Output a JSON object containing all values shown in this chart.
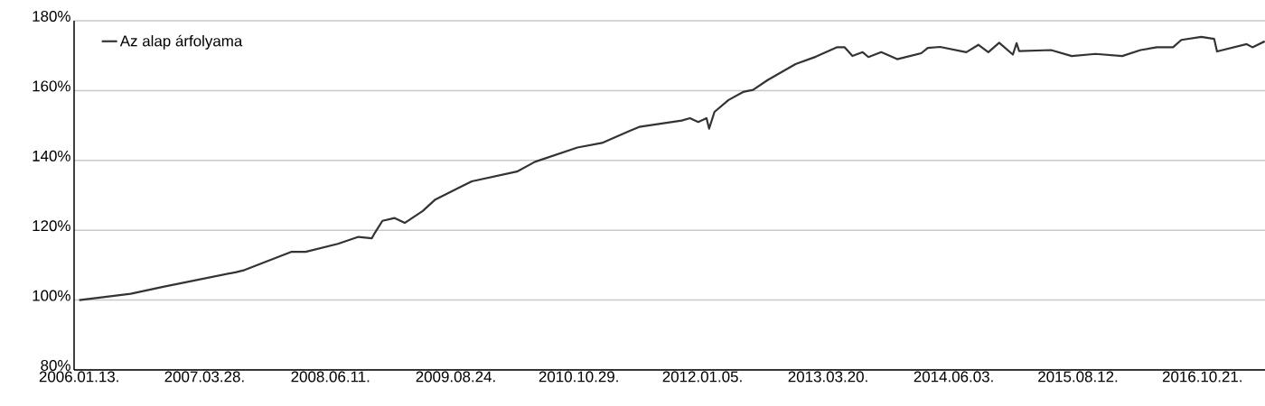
{
  "chart_data": {
    "type": "line",
    "x": [
      "2006-01-13",
      "2006-07-12",
      "2006-11-03",
      "2007-07-17",
      "2007-08-15",
      "2008-01-25",
      "2008-03-16",
      "2008-07-07",
      "2008-09-17",
      "2008-11-03",
      "2008-11-13",
      "2008-12-10",
      "2009-01-22",
      "2009-02-26",
      "2009-04-30",
      "2009-06-13",
      "2009-10-19",
      "2010-03-26",
      "2010-05-28",
      "2010-10-24",
      "2011-01-18",
      "2011-04-20",
      "2011-05-28",
      "2011-10-24",
      "2011-11-22",
      "2011-12-21",
      "2012-01-19",
      "2012-01-28",
      "2012-02-16",
      "2012-04-05",
      "2012-05-26",
      "2012-06-30",
      "2012-08-20",
      "2012-11-26",
      "2013-02-05",
      "2013-04-19",
      "2013-05-17",
      "2013-06-13",
      "2013-07-19",
      "2013-08-08",
      "2013-09-22",
      "2013-11-17",
      "2014-02-09",
      "2014-03-04",
      "2014-04-16",
      "2014-07-17",
      "2014-08-28",
      "2014-10-02",
      "2014-11-09",
      "2014-12-27",
      "2015-01-09",
      "2015-01-18",
      "2015-05-10",
      "2015-07-21",
      "2015-10-13",
      "2016-01-14",
      "2016-03-18",
      "2016-05-14",
      "2016-07-10",
      "2016-08-08",
      "2016-10-17",
      "2016-12-01",
      "2016-12-11",
      "2017-03-25",
      "2017-04-14",
      "2017-05-27"
    ],
    "series": [
      {
        "name": "Az alap árfolyama",
        "color": "#333333",
        "values": [
          100,
          101.8,
          103.8,
          108,
          108.6,
          113.8,
          113.8,
          116.1,
          118.1,
          117.7,
          119.2,
          122.7,
          123.5,
          122.1,
          125.5,
          128.8,
          134,
          136.8,
          139.6,
          143.7,
          145,
          148.3,
          149.6,
          151.4,
          152.1,
          151,
          152.1,
          149.1,
          153.9,
          157.3,
          159.6,
          160.2,
          163,
          167.6,
          169.7,
          172.4,
          172.4,
          169.9,
          171,
          169.6,
          171,
          169,
          170.7,
          172.2,
          172.5,
          171,
          173.1,
          171,
          173.7,
          170.3,
          173.6,
          171.3,
          171.6,
          169.9,
          170.5,
          169.9,
          171.6,
          172.4,
          172.4,
          174.5,
          175.4,
          174.8,
          171.2,
          173.3,
          172.4,
          174.1
        ]
      }
    ],
    "xlim": [
      "2005-12-26",
      "2017-05-28"
    ],
    "xticks": [
      {
        "value": "2006-01-13",
        "label": "2006.01.13."
      },
      {
        "value": "2007-03-28",
        "label": "2007.03.28."
      },
      {
        "value": "2008-06-11",
        "label": "2008.06.11."
      },
      {
        "value": "2009-08-24",
        "label": "2009.08.24."
      },
      {
        "value": "2010-10-29",
        "label": "2010.10.29."
      },
      {
        "value": "2012-01-05",
        "label": "2012.01.05."
      },
      {
        "value": "2013-03-20",
        "label": "2013.03.20."
      },
      {
        "value": "2014-06-03",
        "label": "2014.06.03."
      },
      {
        "value": "2015-08-12",
        "label": "2015.08.12."
      },
      {
        "value": "2016-10-21",
        "label": "2016.10.21."
      }
    ],
    "ylim": [
      80,
      180
    ],
    "yticks": [
      {
        "value": 80,
        "label": "80%"
      },
      {
        "value": 100,
        "label": "100%"
      },
      {
        "value": 120,
        "label": "120%"
      },
      {
        "value": 140,
        "label": "140%"
      },
      {
        "value": 160,
        "label": "160%"
      },
      {
        "value": 180,
        "label": "180%"
      }
    ],
    "grid": "y",
    "legend": "top left",
    "marker": "none",
    "line_style": "solid"
  }
}
